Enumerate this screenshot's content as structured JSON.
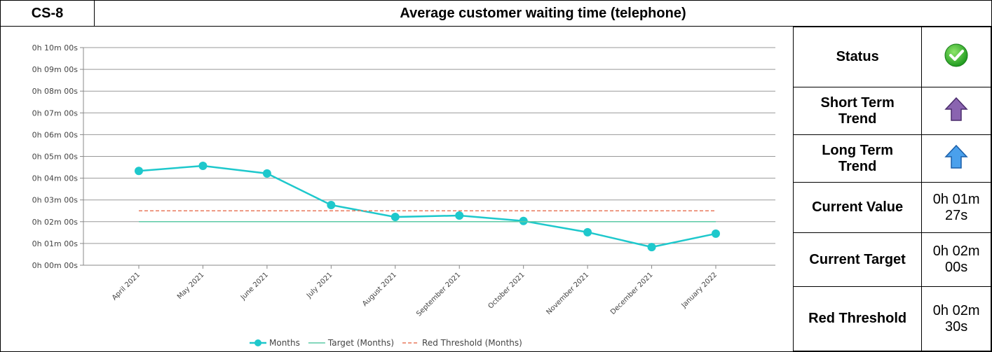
{
  "header": {
    "code": "CS-8",
    "title": "Average customer waiting time (telephone)"
  },
  "chart_data": {
    "type": "line",
    "categories": [
      "April 2021",
      "May 2021",
      "June 2021",
      "July 2021",
      "August 2021",
      "September 2021",
      "October 2021",
      "November 2021",
      "December 2021",
      "January 2022"
    ],
    "series": [
      {
        "name": "Months",
        "color": "#1ec8cc",
        "marker": true,
        "values": [
          260,
          274,
          253,
          166,
          133,
          137,
          122,
          91,
          50,
          87
        ]
      },
      {
        "name": "Target (Months)",
        "color": "#5ccaa6",
        "values": [
          120,
          120,
          120,
          120,
          120,
          120,
          120,
          120,
          120,
          120
        ]
      },
      {
        "name": "Red Threshold (Months)",
        "color": "#e8795c",
        "line_style": "dashed",
        "values": [
          150,
          150,
          150,
          150,
          150,
          150,
          150,
          150,
          150,
          150
        ]
      }
    ],
    "ylim": [
      0,
      600
    ],
    "yticks": [
      {
        "value": 0,
        "label": "0h 00m 00s"
      },
      {
        "value": 60,
        "label": "0h 01m 00s"
      },
      {
        "value": 120,
        "label": "0h 02m 00s"
      },
      {
        "value": 180,
        "label": "0h 03m 00s"
      },
      {
        "value": 240,
        "label": "0h 04m 00s"
      },
      {
        "value": 300,
        "label": "0h 05m 00s"
      },
      {
        "value": 360,
        "label": "0h 06m 00s"
      },
      {
        "value": 420,
        "label": "0h 07m 00s"
      },
      {
        "value": 480,
        "label": "0h 08m 00s"
      },
      {
        "value": 540,
        "label": "0h 09m 00s"
      },
      {
        "value": 600,
        "label": "0h 10m 00s"
      }
    ],
    "grid": true,
    "legend": "bottom"
  },
  "indicators": [
    {
      "label": "Status"
    },
    {
      "label": "Short Term Trend"
    },
    {
      "label": "Long Term Trend"
    },
    {
      "label": "Current Value",
      "value": "0h 01m 27s"
    },
    {
      "label": "Current Target",
      "value": "0h 02m 00s"
    },
    {
      "label": "Red Threshold",
      "value": "0h 02m 30s"
    }
  ]
}
